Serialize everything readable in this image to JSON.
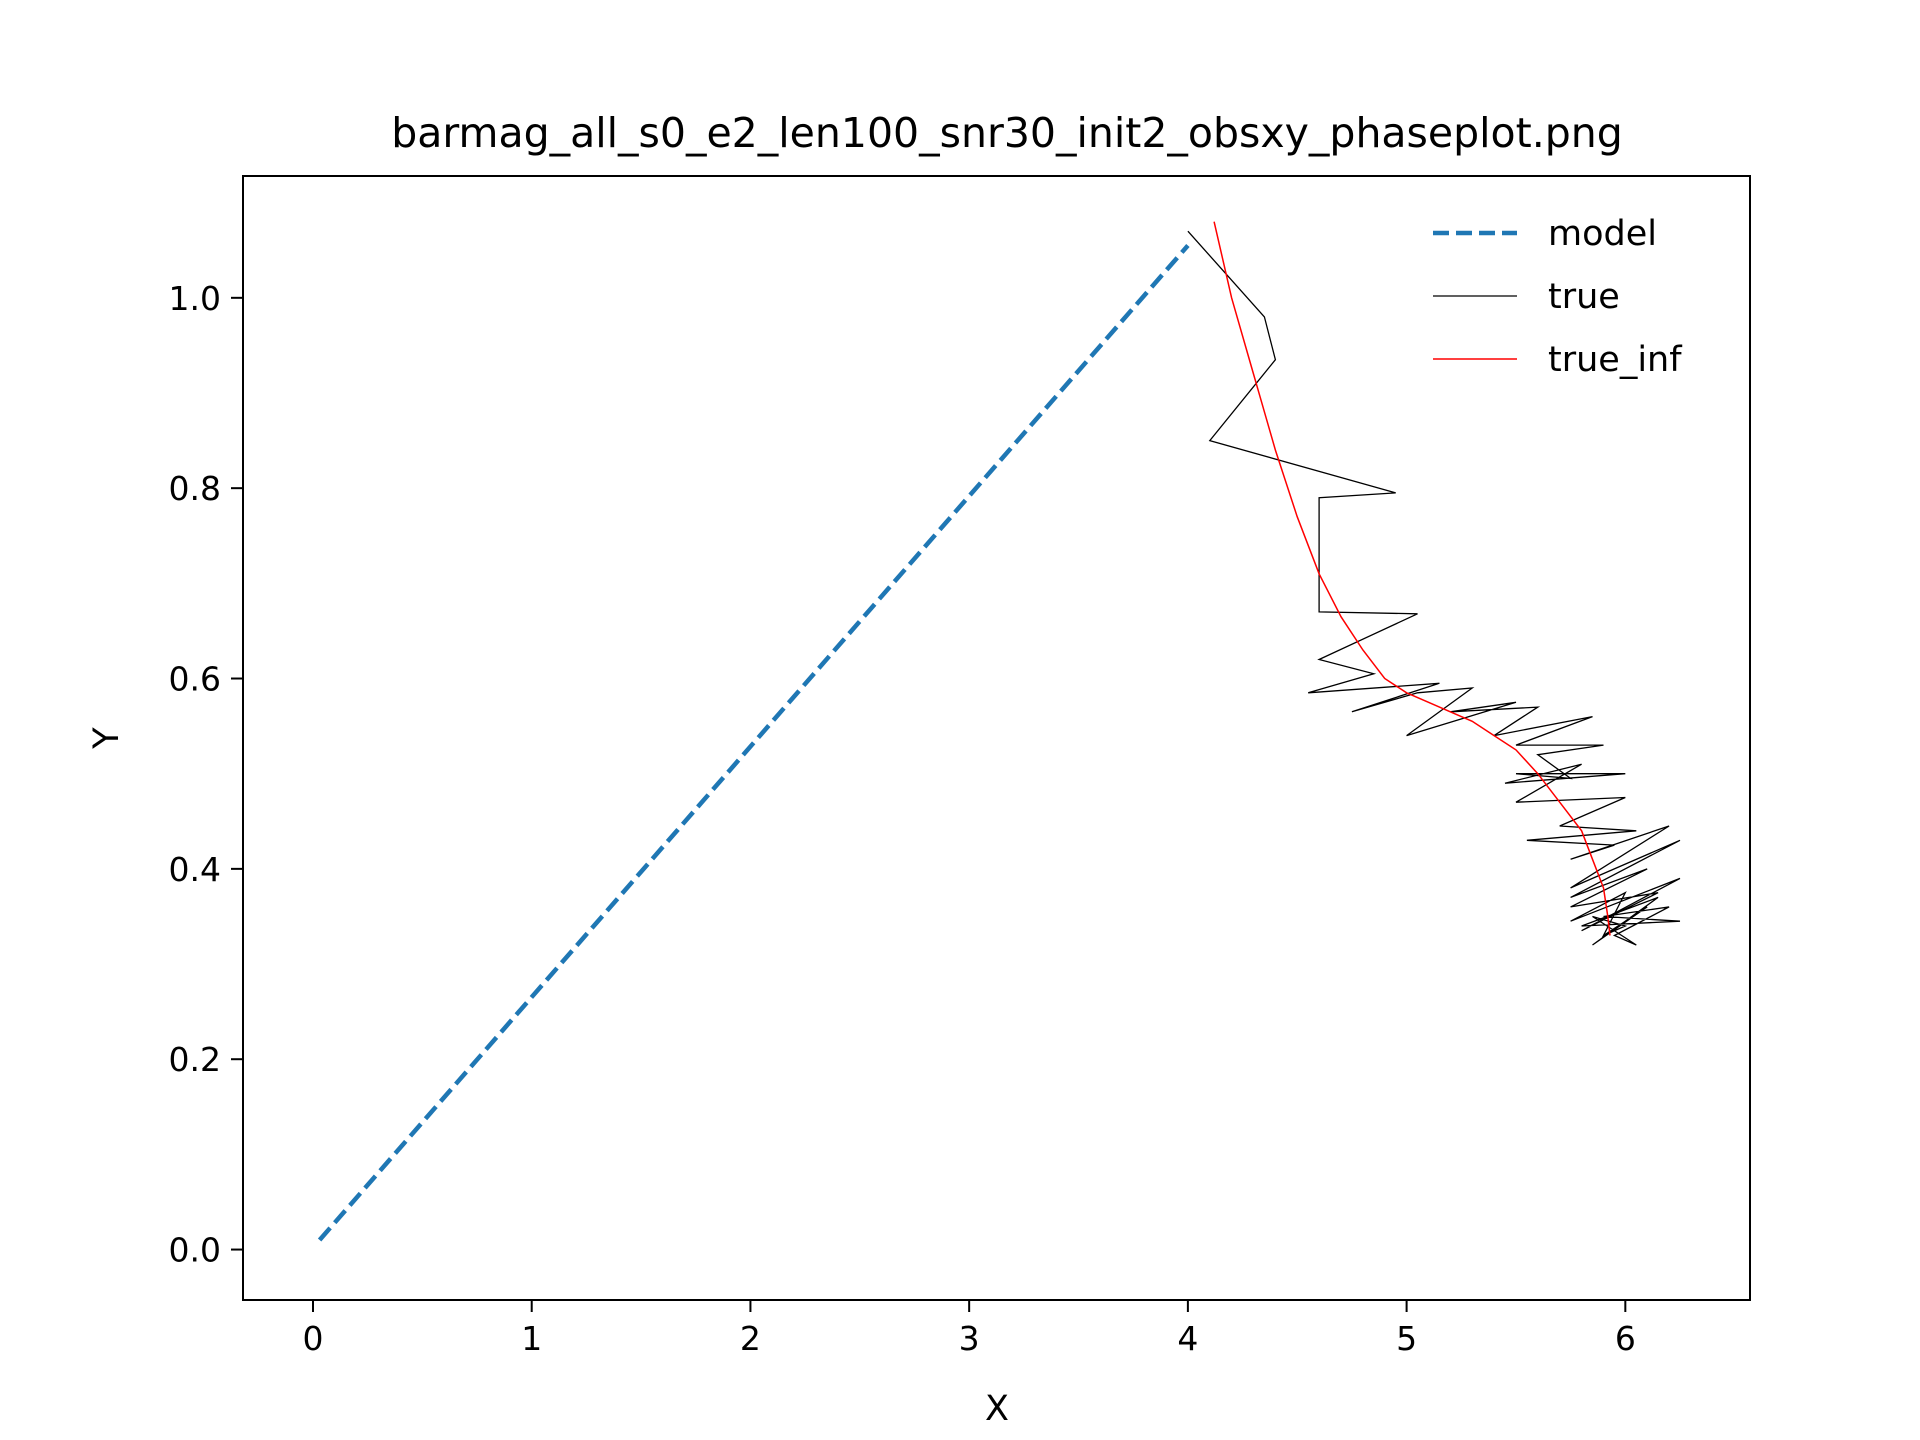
{
  "chart_data": {
    "type": "line",
    "title": "barmag_all_s0_e2_len100_snr30_init2_obsxy_phaseplot.png",
    "xlabel": "X",
    "ylabel": "Y",
    "xlim": [
      -0.32,
      6.57
    ],
    "ylim": [
      -0.053,
      1.128
    ],
    "xticks": [
      0,
      1,
      2,
      3,
      4,
      5,
      6
    ],
    "xtick_labels": [
      "0",
      "1",
      "2",
      "3",
      "4",
      "5",
      "6"
    ],
    "yticks": [
      0.0,
      0.2,
      0.4,
      0.6,
      0.8,
      1.0
    ],
    "ytick_labels": [
      "0.0",
      "0.2",
      "0.4",
      "0.6",
      "0.8",
      "1.0"
    ],
    "grid": false,
    "legend": "top-right",
    "series": [
      {
        "name": "model",
        "color": "#1f77b4",
        "style": "dashed",
        "x": [
          0.03,
          4.0
        ],
        "y": [
          0.01,
          1.055
        ]
      },
      {
        "name": "true",
        "color": "#000000",
        "style": "solid",
        "x": [
          4.0,
          4.35,
          4.4,
          4.1,
          4.95,
          4.6,
          4.6,
          5.05,
          4.6,
          4.85,
          4.55,
          5.15,
          4.75,
          5.05,
          5.3,
          5.0,
          5.5,
          5.2,
          5.6,
          5.4,
          5.85,
          5.5,
          5.9,
          5.6,
          5.75,
          5.5,
          6.0,
          5.45,
          5.8,
          5.5,
          6.0,
          5.7,
          6.05,
          5.55,
          5.95,
          5.75,
          6.2,
          5.75,
          6.25,
          5.75,
          6.1,
          5.75,
          6.15,
          5.8,
          6.25,
          5.75,
          6.0,
          5.9,
          6.1,
          5.85,
          6.15,
          5.8,
          6.25,
          5.9,
          6.2,
          5.95,
          6.05,
          5.85,
          6.0,
          5.9
        ],
        "y": [
          1.07,
          0.98,
          0.935,
          0.85,
          0.795,
          0.79,
          0.67,
          0.668,
          0.62,
          0.605,
          0.585,
          0.595,
          0.565,
          0.585,
          0.59,
          0.54,
          0.575,
          0.565,
          0.57,
          0.54,
          0.56,
          0.53,
          0.53,
          0.52,
          0.495,
          0.5,
          0.5,
          0.49,
          0.51,
          0.47,
          0.475,
          0.445,
          0.44,
          0.43,
          0.425,
          0.41,
          0.445,
          0.38,
          0.43,
          0.37,
          0.4,
          0.36,
          0.375,
          0.335,
          0.39,
          0.345,
          0.375,
          0.33,
          0.36,
          0.32,
          0.37,
          0.34,
          0.345,
          0.35,
          0.36,
          0.33,
          0.32,
          0.35,
          0.34,
          0.33
        ]
      },
      {
        "name": "true_inf",
        "color": "#ff0000",
        "style": "solid",
        "x": [
          4.12,
          4.2,
          4.3,
          4.4,
          4.5,
          4.6,
          4.7,
          4.8,
          4.9,
          5.0,
          5.1,
          5.2,
          5.3,
          5.4,
          5.5,
          5.6,
          5.7,
          5.8,
          5.85,
          5.9,
          5.92,
          5.93
        ],
        "y": [
          1.08,
          1.0,
          0.92,
          0.84,
          0.77,
          0.71,
          0.665,
          0.63,
          0.6,
          0.585,
          0.575,
          0.565,
          0.555,
          0.54,
          0.525,
          0.5,
          0.47,
          0.44,
          0.41,
          0.38,
          0.35,
          0.33
        ]
      }
    ]
  }
}
